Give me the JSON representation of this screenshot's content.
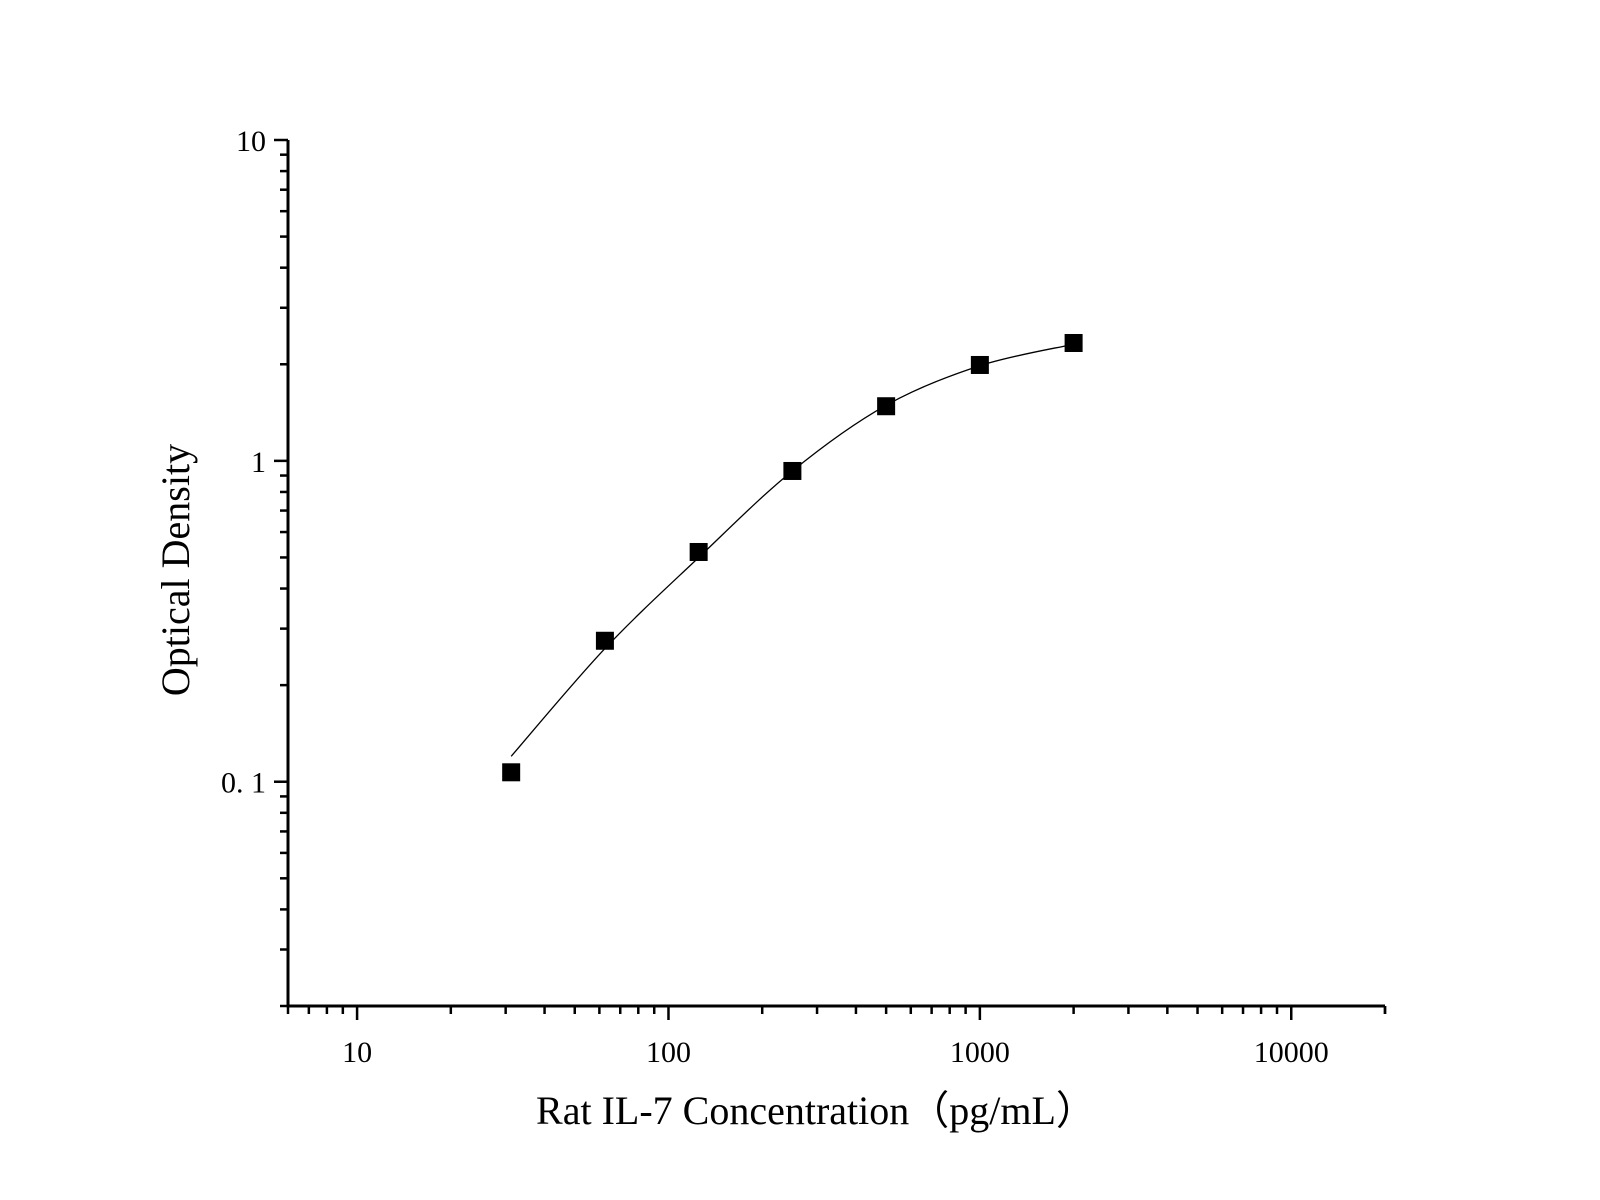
{
  "chart_data": {
    "type": "scatter",
    "title": "",
    "xlabel": "Rat IL-7 Concentration（pg/mL）",
    "ylabel": "Optical Density",
    "x_scale": "log",
    "y_scale": "log",
    "xlim": [
      6,
      20000
    ],
    "ylim": [
      0.02,
      10
    ],
    "x_ticks": [
      {
        "value": 10,
        "label": "10"
      },
      {
        "value": 100,
        "label": "100"
      },
      {
        "value": 1000,
        "label": "1000"
      },
      {
        "value": 10000,
        "label": "10000"
      }
    ],
    "y_ticks": [
      {
        "value": 0.1,
        "label": "0. 1"
      },
      {
        "value": 1,
        "label": "1"
      },
      {
        "value": 10,
        "label": "10"
      }
    ],
    "grid": false,
    "legend": "none",
    "marker": "square",
    "fit_line": true,
    "colors": {
      "marker": "#000000",
      "line": "#000000",
      "axis": "#000000"
    },
    "series": [
      {
        "x": [
          31.25,
          62.5,
          125,
          250,
          500,
          1000,
          2000
        ],
        "y": [
          0.107,
          0.275,
          0.52,
          0.93,
          1.48,
          1.99,
          2.33
        ]
      }
    ],
    "fit_curve": {
      "x": [
        31.25,
        62.5,
        125,
        250,
        500,
        1000,
        2000
      ],
      "y": [
        0.12,
        0.26,
        0.5,
        0.93,
        1.49,
        1.98,
        2.31
      ]
    }
  }
}
